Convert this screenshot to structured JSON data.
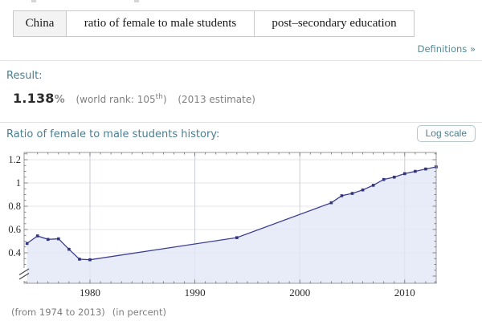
{
  "query_bar": {
    "tokens": [
      {
        "label": "China",
        "highlighted": true
      },
      {
        "label": "ratio of female to male students",
        "highlighted": false
      },
      {
        "label": "post–secondary education",
        "highlighted": false
      }
    ],
    "definitions_link": "Definitions »"
  },
  "result_pod": {
    "title": "Result:",
    "value": "1.138",
    "percent_sign": "%",
    "world_rank_prefix": "(world rank: 105",
    "world_rank_sup": "th",
    "world_rank_suffix": ")",
    "estimate_note": "(2013 estimate)"
  },
  "history_pod": {
    "title": "Ratio of female to male students history:",
    "log_scale_button": "Log scale",
    "caption_range": "(from 1974 to 2013)",
    "caption_unit": "(in percent)"
  },
  "colors": {
    "accent_teal": "#4b7e91",
    "link_teal": "#4d8a99",
    "separator": "#e2e2e2"
  },
  "chart_data": {
    "type": "line",
    "title": "Ratio of female to male students history",
    "series": [
      {
        "name": "ratio of female to male students (China, post-secondary)",
        "points": [
          [
            1974,
            0.48
          ],
          [
            1975,
            0.545
          ],
          [
            1976,
            0.515
          ],
          [
            1977,
            0.52
          ],
          [
            1978,
            0.43
          ],
          [
            1979,
            0.345
          ],
          [
            1980,
            0.34
          ],
          [
            1994,
            0.53
          ],
          [
            2003,
            0.83
          ],
          [
            2004,
            0.89
          ],
          [
            2005,
            0.91
          ],
          [
            2006,
            0.94
          ],
          [
            2007,
            0.98
          ],
          [
            2008,
            1.03
          ],
          [
            2009,
            1.05
          ],
          [
            2010,
            1.08
          ],
          [
            2011,
            1.1
          ],
          [
            2012,
            1.12
          ],
          [
            2013,
            1.138
          ]
        ]
      }
    ],
    "xlabel": "",
    "ylabel": "",
    "x_ticks": [
      1980,
      1990,
      2000,
      2010
    ],
    "y_ticks": [
      1.2,
      1,
      0.8,
      0.6,
      0.4
    ],
    "x_data_range": [
      1974,
      2013
    ],
    "y_axis_break_at_bottom": true,
    "grid": true,
    "legend": false,
    "unit": "percent (ratio)",
    "line_color": "#3c3f92",
    "marker_color": "#32357e",
    "fill_color": "rgba(226,231,247,0.8)",
    "grid_color_v": "#c9cdd6",
    "grid_color_h": "#e4e4e8",
    "frame_color": "#9a9a9a",
    "tick_color": "#6b6b6b",
    "axis_label_color": "#2a2a2a"
  }
}
